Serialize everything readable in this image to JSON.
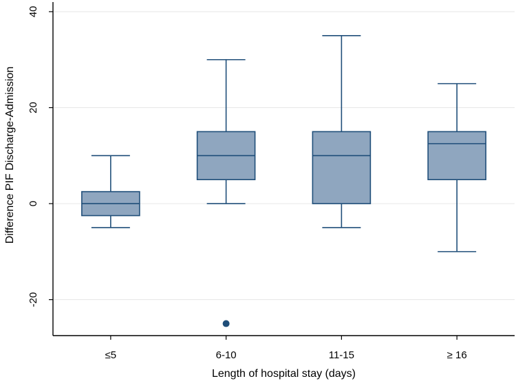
{
  "chart_data": {
    "type": "box",
    "title": "",
    "xlabel": "Length of hospital stay (days)",
    "ylabel": "Difference PIF Discharge-Admission",
    "ylim": [
      -27.5,
      42
    ],
    "yticks": [
      -20,
      0,
      20,
      40
    ],
    "ytick_labels": [
      "-20",
      "0",
      "20",
      "40"
    ],
    "grid": true,
    "categories": [
      "≤5",
      "6-10",
      "11-15",
      "≥ 16"
    ],
    "boxes": [
      {
        "category": "≤5",
        "whisker_low": -5,
        "q1": -2.5,
        "median": 0,
        "q3": 2.5,
        "whisker_high": 10,
        "outliers": []
      },
      {
        "category": "6-10",
        "whisker_low": 0,
        "q1": 5,
        "median": 10,
        "q3": 15,
        "whisker_high": 30,
        "outliers": [
          -25
        ]
      },
      {
        "category": "11-15",
        "whisker_low": -5,
        "q1": 0,
        "median": 10,
        "q3": 15,
        "whisker_high": 35,
        "outliers": []
      },
      {
        "category": "≥ 16",
        "whisker_low": -10,
        "q1": 5,
        "median": 12.5,
        "q3": 15,
        "whisker_high": 25,
        "outliers": []
      }
    ],
    "colors": {
      "box_fill": "#8fa6bf",
      "box_stroke": "#1f4e79",
      "grid": "#e6e6e6",
      "axis": "#000000",
      "outlier": "#1f4e79"
    }
  }
}
